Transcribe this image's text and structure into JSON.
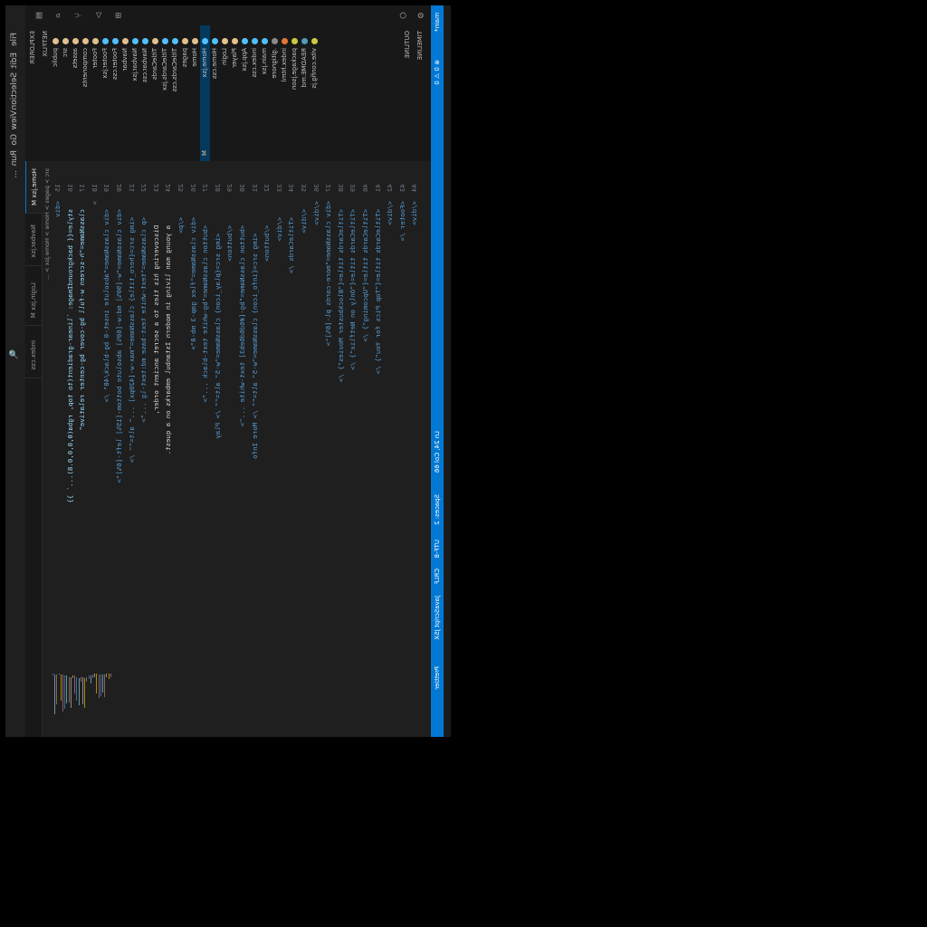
{
  "titlebar": {
    "menu": [
      "File",
      "Edit",
      "Selection",
      "View",
      "Go",
      "Run",
      "..."
    ],
    "search": "🔍"
  },
  "explorer": {
    "header": "EXPLORER",
    "section": "NETFLIX",
    "items": [
      {
        "label": "public",
        "color": "#e2c08d",
        "badge": ""
      },
      {
        "label": "src",
        "color": "#e2c08d",
        "badge": ""
      },
      {
        "label": "assets",
        "color": "#e2c08d",
        "badge": ""
      },
      {
        "label": "components",
        "color": "#e2c08d",
        "badge": ""
      },
      {
        "label": "Footer",
        "color": "#e2c08d",
        "badge": ""
      },
      {
        "label": "Footer.jsx",
        "color": "#4fc1ff",
        "badge": ""
      },
      {
        "label": "Footer.css",
        "color": "#4fc1ff",
        "badge": ""
      },
      {
        "label": "Navbar",
        "color": "#e2c08d",
        "badge": ""
      },
      {
        "label": "Navbar.jsx",
        "color": "#4fc1ff",
        "badge": ""
      },
      {
        "label": "Navbar.css",
        "color": "#4fc1ff",
        "badge": ""
      },
      {
        "label": "TitleCards",
        "color": "#e2c08d",
        "badge": ""
      },
      {
        "label": "TitleCards.jsx",
        "color": "#4fc1ff",
        "badge": ""
      },
      {
        "label": "TitleCards.css",
        "color": "#4fc1ff",
        "badge": ""
      },
      {
        "label": "pages",
        "color": "#e2c08d",
        "badge": ""
      },
      {
        "label": "Home",
        "color": "#e2c08d",
        "badge": ""
      },
      {
        "label": "Home.jsx",
        "color": "#4fc1ff",
        "badge": "M"
      },
      {
        "label": "Home.css",
        "color": "#4fc1ff",
        "badge": ""
      },
      {
        "label": "Login",
        "color": "#e2c08d",
        "badge": ""
      },
      {
        "label": "Player",
        "color": "#e2c08d",
        "badge": ""
      },
      {
        "label": "App.jsx",
        "color": "#4fc1ff",
        "badge": ""
      },
      {
        "label": "index.css",
        "color": "#4fc1ff",
        "badge": ""
      },
      {
        "label": "main.jsx",
        "color": "#4fc1ff",
        "badge": ""
      },
      {
        "label": ".gitignore",
        "color": "#8a8a8a",
        "badge": ""
      },
      {
        "label": "index.html",
        "color": "#e37933",
        "badge": ""
      },
      {
        "label": "package.json",
        "color": "#cbcb41",
        "badge": ""
      },
      {
        "label": "README.md",
        "color": "#519aba",
        "badge": ""
      },
      {
        "label": "vite.config.js",
        "color": "#cbcb41",
        "badge": ""
      }
    ],
    "outline": "OUTLINE",
    "timeline": "TIMELINE"
  },
  "tabs": [
    {
      "label": "Home.jsx M",
      "active": true
    },
    {
      "label": "Navbar.jsx",
      "active": false
    },
    {
      "label": "Login.jsx M",
      "active": false
    },
    {
      "label": "index.css",
      "active": false
    }
  ],
  "crumbs": "src > pages > Home > Home.jsx > ...",
  "code": [
    {
      "n": "15",
      "t": "<div"
    },
    {
      "n": "16",
      "t": "  style={{ backgroundImage: `linear-gradient(to top, rgba(0,0,0,0.8)...` }}"
    },
    {
      "n": "17",
      "t": "  className=\"h-screen w-full bg-cover bg-center relative\""
    },
    {
      "n": "18",
      "t": ">"
    },
    {
      "n": "19",
      "t": "  <div className=\"absolute inset-0 bg-black/40\" />"
    },
    {
      "n": "20",
      "t": "  <div className=\"w-[90%] md:w-[60%] absolute bottom-[15%] left-[6%]\">"
    },
    {
      "n": "21",
      "t": "    <img src={hero_title} className=\"max-w-[420px] ...\" alt=\"\" />"
    },
    {
      "n": "22",
      "t": "    <p className=\"text-white text-base md:text-lg ...\">"
    },
    {
      "n": "23",
      "t": "      Discovering his ties to a secret ancient order,"
    },
    {
      "n": "24",
      "t": "      a young man living in modern Istanbul embarks on a quest."
    },
    {
      "n": "25",
      "t": "    </p>"
    },
    {
      "n": "26",
      "t": "    <div className=\"flex gap-3 mb-8\">"
    },
    {
      "n": "27",
      "t": "      <button className=\"bg-white text-black ...\">"
    },
    {
      "n": "28",
      "t": "        <img src={play_icon} className=\"w-5\" alt=\"\" /> Play"
    },
    {
      "n": "29",
      "t": "      </button>"
    },
    {
      "n": "30",
      "t": "      <button className=\"bg-[#6d6d6eb3] text-white ...\">"
    },
    {
      "n": "31",
      "t": "        <img src={info_icon} className=\"w-5\" alt=\"\" /> More Info"
    },
    {
      "n": "32",
      "t": "      </button>"
    },
    {
      "n": "33",
      "t": "    </div>"
    },
    {
      "n": "34",
      "t": "    <TitleCards />"
    },
    {
      "n": "35",
      "t": "  </div>"
    },
    {
      "n": "36",
      "t": "</div>"
    },
    {
      "n": "37",
      "t": "<div className=\"more-cards pl-[6%]\">"
    },
    {
      "n": "38",
      "t": "  <TitleCards title={\"Blockbuster Movies\"} />"
    },
    {
      "n": "39",
      "t": "  <TitleCards title={\"Only on Netflix\"} />"
    },
    {
      "n": "40",
      "t": "  <TitleCards title={\"Upcoming\"} />"
    },
    {
      "n": "41",
      "t": "  <TitleCards title={\"Top Pics for You\"} />"
    },
    {
      "n": "42",
      "t": "</div>"
    },
    {
      "n": "43",
      "t": "<Footer />"
    },
    {
      "n": "44",
      "t": "</div>"
    }
  ],
  "status": {
    "branch": "main*",
    "errors": "⊗ 0 ⚠ 0",
    "position": "Ln 24, Col 66",
    "spaces": "Spaces: 2",
    "encoding": "UTF-8",
    "eol": "CRLF",
    "lang": "JavaScript JSX",
    "prettier": "Prettier"
  },
  "colors": {
    "accent": "#0078d4",
    "bg": "#1f1f1f"
  }
}
